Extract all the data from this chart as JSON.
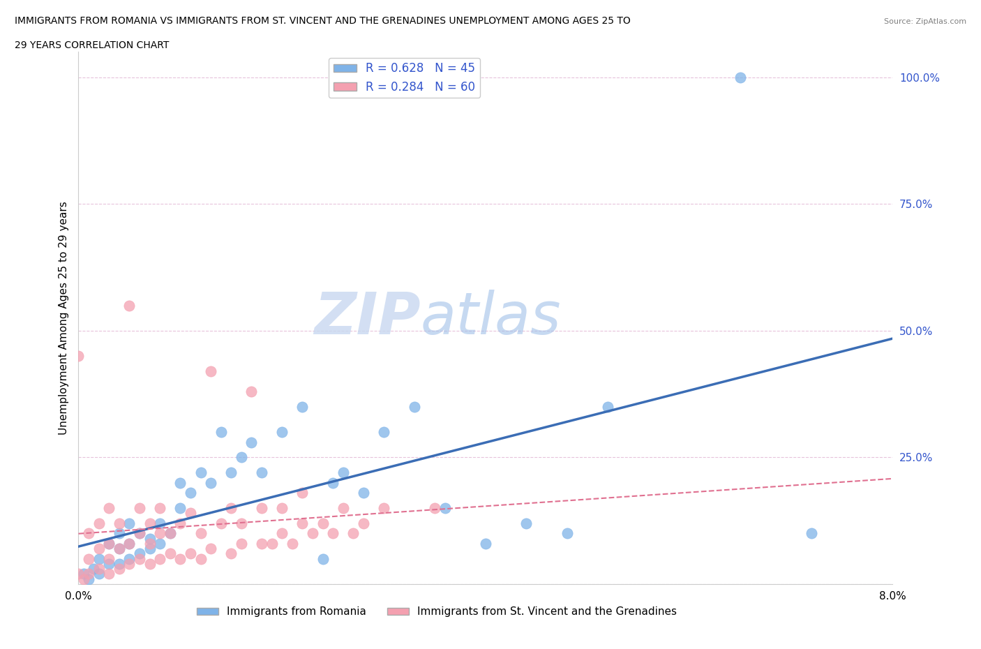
{
  "title_line1": "IMMIGRANTS FROM ROMANIA VS IMMIGRANTS FROM ST. VINCENT AND THE GRENADINES UNEMPLOYMENT AMONG AGES 25 TO",
  "title_line2": "29 YEARS CORRELATION CHART",
  "source_text": "Source: ZipAtlas.com",
  "ylabel": "Unemployment Among Ages 25 to 29 years",
  "romania_label": "Immigrants from Romania",
  "svg_label": "Immigrants from St. Vincent and the Grenadines",
  "romania_R": 0.628,
  "romania_N": 45,
  "svg_R": 0.284,
  "svg_N": 60,
  "romania_color": "#7FB3E8",
  "svg_color": "#F4A0B0",
  "romania_line_color": "#3B6DB5",
  "svg_line_color": "#E07090",
  "watermark_zip": "ZIP",
  "watermark_atlas": "atlas",
  "watermark_color_zip": "#C8D8F0",
  "watermark_color_atlas": "#A0C0E8",
  "xlim": [
    0.0,
    0.08
  ],
  "ylim": [
    0.0,
    1.05
  ],
  "yticks": [
    0.0,
    0.25,
    0.5,
    0.75,
    1.0
  ],
  "ytick_labels": [
    "",
    "25.0%",
    "50.0%",
    "75.0%",
    "100.0%"
  ],
  "romania_scatter_x": [
    0.0005,
    0.001,
    0.0015,
    0.002,
    0.002,
    0.003,
    0.003,
    0.004,
    0.004,
    0.004,
    0.005,
    0.005,
    0.005,
    0.006,
    0.006,
    0.007,
    0.007,
    0.008,
    0.008,
    0.009,
    0.01,
    0.01,
    0.011,
    0.012,
    0.013,
    0.014,
    0.015,
    0.016,
    0.017,
    0.018,
    0.02,
    0.022,
    0.024,
    0.025,
    0.026,
    0.028,
    0.03,
    0.033,
    0.036,
    0.04,
    0.044,
    0.048,
    0.052,
    0.065,
    0.072
  ],
  "romania_scatter_y": [
    0.02,
    0.01,
    0.03,
    0.02,
    0.05,
    0.04,
    0.08,
    0.04,
    0.07,
    0.1,
    0.05,
    0.08,
    0.12,
    0.06,
    0.1,
    0.07,
    0.09,
    0.08,
    0.12,
    0.1,
    0.15,
    0.2,
    0.18,
    0.22,
    0.2,
    0.3,
    0.22,
    0.25,
    0.28,
    0.22,
    0.3,
    0.35,
    0.05,
    0.2,
    0.22,
    0.18,
    0.3,
    0.35,
    0.15,
    0.08,
    0.12,
    0.1,
    0.35,
    1.0,
    0.1
  ],
  "svg_scatter_x": [
    0.0,
    0.0,
    0.0005,
    0.001,
    0.001,
    0.001,
    0.002,
    0.002,
    0.002,
    0.003,
    0.003,
    0.003,
    0.003,
    0.004,
    0.004,
    0.004,
    0.005,
    0.005,
    0.005,
    0.006,
    0.006,
    0.006,
    0.007,
    0.007,
    0.007,
    0.008,
    0.008,
    0.008,
    0.009,
    0.009,
    0.01,
    0.01,
    0.011,
    0.011,
    0.012,
    0.012,
    0.013,
    0.013,
    0.014,
    0.015,
    0.015,
    0.016,
    0.016,
    0.017,
    0.018,
    0.018,
    0.019,
    0.02,
    0.02,
    0.021,
    0.022,
    0.022,
    0.023,
    0.024,
    0.025,
    0.026,
    0.027,
    0.028,
    0.03,
    0.035
  ],
  "svg_scatter_y": [
    0.45,
    0.02,
    0.01,
    0.05,
    0.1,
    0.02,
    0.03,
    0.07,
    0.12,
    0.02,
    0.05,
    0.08,
    0.15,
    0.03,
    0.07,
    0.12,
    0.04,
    0.08,
    0.55,
    0.05,
    0.1,
    0.15,
    0.04,
    0.08,
    0.12,
    0.05,
    0.1,
    0.15,
    0.06,
    0.1,
    0.05,
    0.12,
    0.06,
    0.14,
    0.05,
    0.1,
    0.42,
    0.07,
    0.12,
    0.06,
    0.15,
    0.08,
    0.12,
    0.38,
    0.08,
    0.15,
    0.08,
    0.1,
    0.15,
    0.08,
    0.12,
    0.18,
    0.1,
    0.12,
    0.1,
    0.15,
    0.1,
    0.12,
    0.15,
    0.15
  ],
  "legend_text_color": "#3355CC",
  "tick_color": "#3355CC"
}
